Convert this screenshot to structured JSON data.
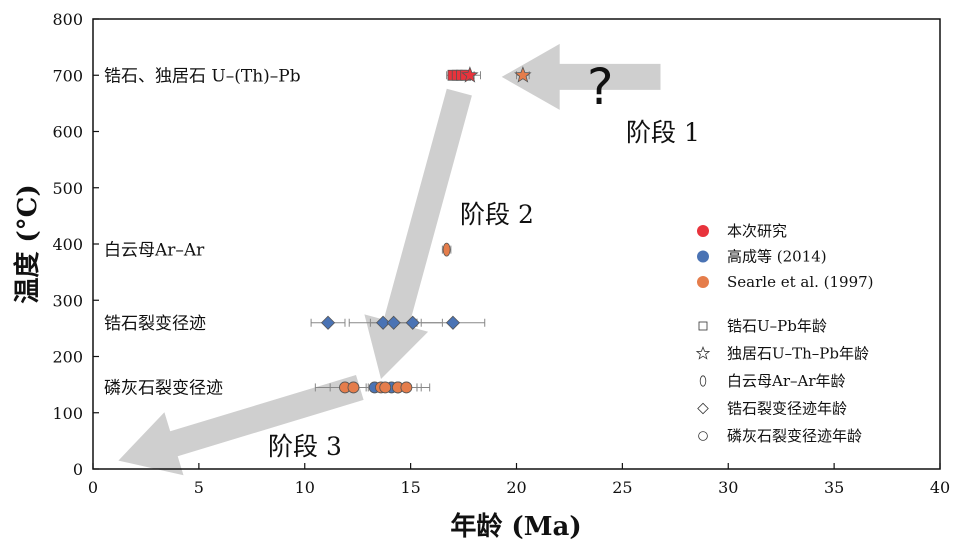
{
  "chart_data": {
    "type": "scatter",
    "xlabel": "年龄 (Ma)",
    "ylabel": "温度 (°C)",
    "xlim": [
      0,
      40
    ],
    "ylim": [
      0,
      800
    ],
    "xticks": [
      0,
      5,
      10,
      15,
      20,
      25,
      30,
      35,
      40
    ],
    "yticks": [
      0,
      100,
      200,
      300,
      400,
      500,
      600,
      700,
      800
    ],
    "category_labels": [
      {
        "text": "锆石、独居石 U–(Th)–Pb",
        "y": 700
      },
      {
        "text": "白云母Ar–Ar",
        "y": 390
      },
      {
        "text": "锆石裂变径迹",
        "y": 260
      },
      {
        "text": "磷灰石裂变径迹",
        "y": 145
      }
    ],
    "stage_labels": [
      "阶段 1",
      "阶段 2",
      "阶段 3"
    ],
    "unknown_mark": "?",
    "legend": {
      "sources": [
        {
          "label": "本次研究",
          "color": "#e8333c"
        },
        {
          "label": "高成等 (2014)",
          "color": "#4a73b4"
        },
        {
          "label": "Searle et al. (1997)",
          "color": "#e57d4b"
        }
      ],
      "shapes": [
        {
          "label": "锆石U–Pb年龄",
          "shape": "square"
        },
        {
          "label": "独居石U–Th–Pb年龄",
          "shape": "star"
        },
        {
          "label": "白云母Ar–Ar年龄",
          "shape": "ellipse"
        },
        {
          "label": "锆石裂变径迹年龄",
          "shape": "diamond"
        },
        {
          "label": "磷灰石裂变径迹年龄",
          "shape": "circle"
        }
      ]
    },
    "series": [
      {
        "name": "锆石U–Pb年龄",
        "source": "本次研究",
        "shape": "square",
        "color": "#e8333c",
        "points": [
          {
            "x": 17.0,
            "y": 700,
            "err": 0.3
          },
          {
            "x": 17.2,
            "y": 700,
            "err": 0.3
          },
          {
            "x": 17.4,
            "y": 700,
            "err": 0.3
          },
          {
            "x": 17.6,
            "y": 700,
            "err": 0.4
          }
        ]
      },
      {
        "name": "独居石U–Th–Pb年龄",
        "source": "本次研究",
        "shape": "star",
        "color": "#e8333c",
        "points": [
          {
            "x": 17.8,
            "y": 700,
            "err": 0.5
          }
        ]
      },
      {
        "name": "独居石U–Th–Pb年龄",
        "source": "Searle et al. (1997)",
        "shape": "star",
        "color": "#e57d4b",
        "points": [
          {
            "x": 20.3,
            "y": 700,
            "err": 0.3
          }
        ]
      },
      {
        "name": "白云母Ar–Ar年龄",
        "source": "Searle et al. (1997)",
        "shape": "ellipse",
        "color": "#e57d4b",
        "points": [
          {
            "x": 16.7,
            "y": 390,
            "err": 0.2
          }
        ]
      },
      {
        "name": "锆石裂变径迹年龄",
        "source": "高成等 (2014)",
        "shape": "diamond",
        "color": "#4a73b4",
        "points": [
          {
            "x": 11.1,
            "y": 260,
            "err": 0.8
          },
          {
            "x": 13.7,
            "y": 260,
            "err": 1.6
          },
          {
            "x": 14.2,
            "y": 260,
            "err": 1.1
          },
          {
            "x": 15.1,
            "y": 260,
            "err": 1.4
          },
          {
            "x": 17.0,
            "y": 260,
            "err": 1.5
          }
        ]
      },
      {
        "name": "磷灰石裂变径迹年龄",
        "source": "高成等 (2014)",
        "shape": "circle",
        "color": "#4a73b4",
        "points": [
          {
            "x": 13.3,
            "y": 145,
            "err": 1.2
          },
          {
            "x": 14.1,
            "y": 145,
            "err": 1.2
          },
          {
            "x": 14.4,
            "y": 145,
            "err": 1.1
          }
        ]
      },
      {
        "name": "磷灰石裂变径迹年龄",
        "source": "Searle et al. (1997)",
        "shape": "circle",
        "color": "#e57d4b",
        "points": [
          {
            "x": 11.9,
            "y": 145,
            "err": 1.4
          },
          {
            "x": 12.3,
            "y": 145,
            "err": 1.1
          },
          {
            "x": 13.6,
            "y": 145,
            "err": 1.2
          },
          {
            "x": 13.8,
            "y": 145,
            "err": 0.8
          },
          {
            "x": 14.4,
            "y": 145,
            "err": 0.9
          },
          {
            "x": 14.8,
            "y": 145,
            "err": 1.1
          }
        ]
      }
    ],
    "path_arrows": [
      {
        "name": "stage-1",
        "from": [
          26.8,
          697
        ],
        "to": [
          19.3,
          697
        ]
      },
      {
        "name": "stage-2",
        "from": [
          17.3,
          670
        ],
        "to": [
          13.6,
          160
        ]
      },
      {
        "name": "stage-3",
        "from": [
          12.6,
          145
        ],
        "to": [
          1.2,
          15
        ]
      }
    ]
  }
}
